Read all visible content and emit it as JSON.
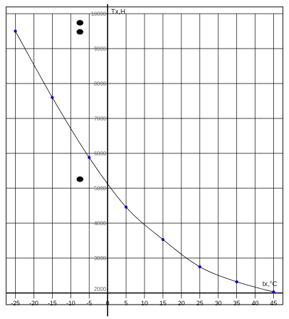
{
  "chart_data": {
    "type": "line",
    "title": "",
    "xlabel": "tx,°C",
    "ylabel": "Tx,H",
    "xlim": [
      -27.5,
      47.5
    ],
    "ylim": [
      2000,
      10000
    ],
    "x_ticks": [
      -25,
      -20,
      -15,
      -10,
      -5,
      0,
      5,
      10,
      15,
      20,
      25,
      30,
      35,
      40,
      45
    ],
    "y_ticks": [
      2000,
      3000,
      4000,
      5000,
      6000,
      7000,
      8000,
      9000,
      10000
    ],
    "x_tick_labels": [
      "-25",
      "-20",
      "-15",
      "-10",
      "-5",
      "0",
      "5",
      "10",
      "15",
      "20",
      "25",
      "30",
      "35",
      "40",
      "45"
    ],
    "y_tick_labels": [
      "2000",
      "3000",
      "4000",
      "5000",
      "6000",
      "7000",
      "8000",
      "9000",
      "10000"
    ],
    "grid": true,
    "legend": false,
    "series": [
      {
        "x": [
          -25,
          -15,
          -5,
          5,
          15,
          25,
          35,
          45
        ],
        "y": [
          9500,
          7600,
          5880,
          4460,
          3530,
          2750,
          2320,
          2030
        ],
        "color": "#0000cc",
        "line_color": "#000000",
        "marker": "dot"
      }
    ],
    "extra_marks": [
      {
        "x": -7.5,
        "y": 9740,
        "color": "#000000"
      },
      {
        "x": -7.5,
        "y": 9480,
        "color": "#000000"
      },
      {
        "x": -7.5,
        "y": 5260,
        "color": "#000000"
      }
    ]
  }
}
